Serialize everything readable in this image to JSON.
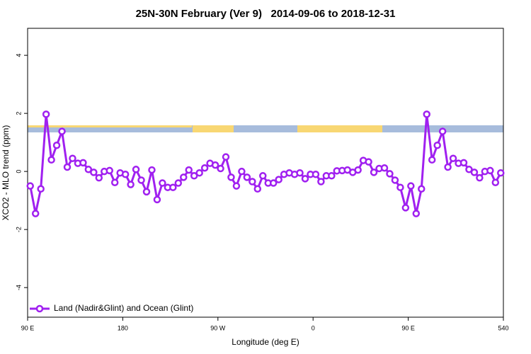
{
  "chart_data": {
    "type": "line",
    "title": "25N-30N February (Ver 9)   2014-09-06 to 2018-12-31",
    "x_label": "Longitude (deg E)",
    "y_label": "XCO2 - MLO trend (ppm)",
    "xlim": [
      90,
      540
    ],
    "ylim": [
      -5.02,
      4.93
    ],
    "xticks": [
      {
        "value": 90,
        "label": "90 E"
      },
      180,
      {
        "value": 270,
        "label": "90 W"
      },
      {
        "value": 360,
        "label": "0"
      },
      {
        "value": 450,
        "label": "90 E"
      },
      540
    ],
    "yticks": [
      -4,
      -2,
      0,
      2,
      4
    ],
    "legend": "bottom-left",
    "x": [
      92.5,
      97.5,
      102.5,
      107.5,
      112.5,
      117.5,
      122.5,
      127.5,
      132.5,
      137.5,
      142.5,
      147.5,
      152.5,
      157.5,
      162.5,
      167.5,
      172.5,
      177.5,
      182.5,
      187.5,
      192.5,
      197.5,
      202.5,
      207.5,
      212.5,
      217.5,
      222.5,
      227.5,
      232.5,
      237.5,
      242.5,
      247.5,
      252.5,
      257.5,
      262.5,
      267.5,
      272.5,
      277.5,
      282.5,
      287.5,
      292.5,
      297.5,
      302.5,
      307.5,
      312.5,
      317.5,
      322.5,
      327.5,
      332.5,
      337.5,
      342.5,
      347.5,
      352.5,
      357.5,
      362.5,
      367.5,
      372.5,
      377.5,
      382.5,
      387.5,
      392.5,
      397.5,
      402.5,
      407.5,
      412.5,
      417.5,
      422.5,
      427.5,
      432.5,
      437.5,
      442.5,
      447.5,
      452.5,
      457.5,
      462.5,
      467.5,
      472.5,
      477.5,
      482.5,
      487.5,
      492.5,
      497.5,
      502.5,
      507.5,
      512.5,
      517.5,
      522.5,
      527.5,
      532.5,
      537.5
    ],
    "series": [
      {
        "name": "Land (Nadir&Glint) and Ocean (Glint)",
        "color": "#a020f0",
        "values": [
          -0.5,
          -1.45,
          -0.6,
          1.97,
          0.4,
          0.9,
          1.38,
          0.15,
          0.45,
          0.28,
          0.3,
          0.07,
          -0.03,
          -0.22,
          0.0,
          0.03,
          -0.38,
          -0.05,
          -0.1,
          -0.45,
          0.07,
          -0.3,
          -0.7,
          0.05,
          -0.97,
          -0.4,
          -0.55,
          -0.55,
          -0.4,
          -0.2,
          0.05,
          -0.15,
          -0.05,
          0.12,
          0.28,
          0.22,
          0.1,
          0.5,
          -0.2,
          -0.5,
          0.0,
          -0.2,
          -0.35,
          -0.6,
          -0.15,
          -0.4,
          -0.4,
          -0.28,
          -0.1,
          -0.05,
          -0.1,
          -0.05,
          -0.25,
          -0.1,
          -0.1,
          -0.35,
          -0.15,
          -0.15,
          0.02,
          0.03,
          0.05,
          -0.03,
          0.05,
          0.38,
          0.33,
          -0.03,
          0.1,
          0.12,
          -0.08,
          -0.3,
          -0.55,
          -1.25,
          -0.5,
          -1.45,
          -0.6,
          1.97,
          0.4,
          0.9,
          1.38,
          0.15,
          0.45,
          0.28,
          0.3,
          0.07,
          -0.03,
          -0.22,
          0.0,
          0.03,
          -0.38,
          -0.05
        ]
      }
    ]
  }
}
